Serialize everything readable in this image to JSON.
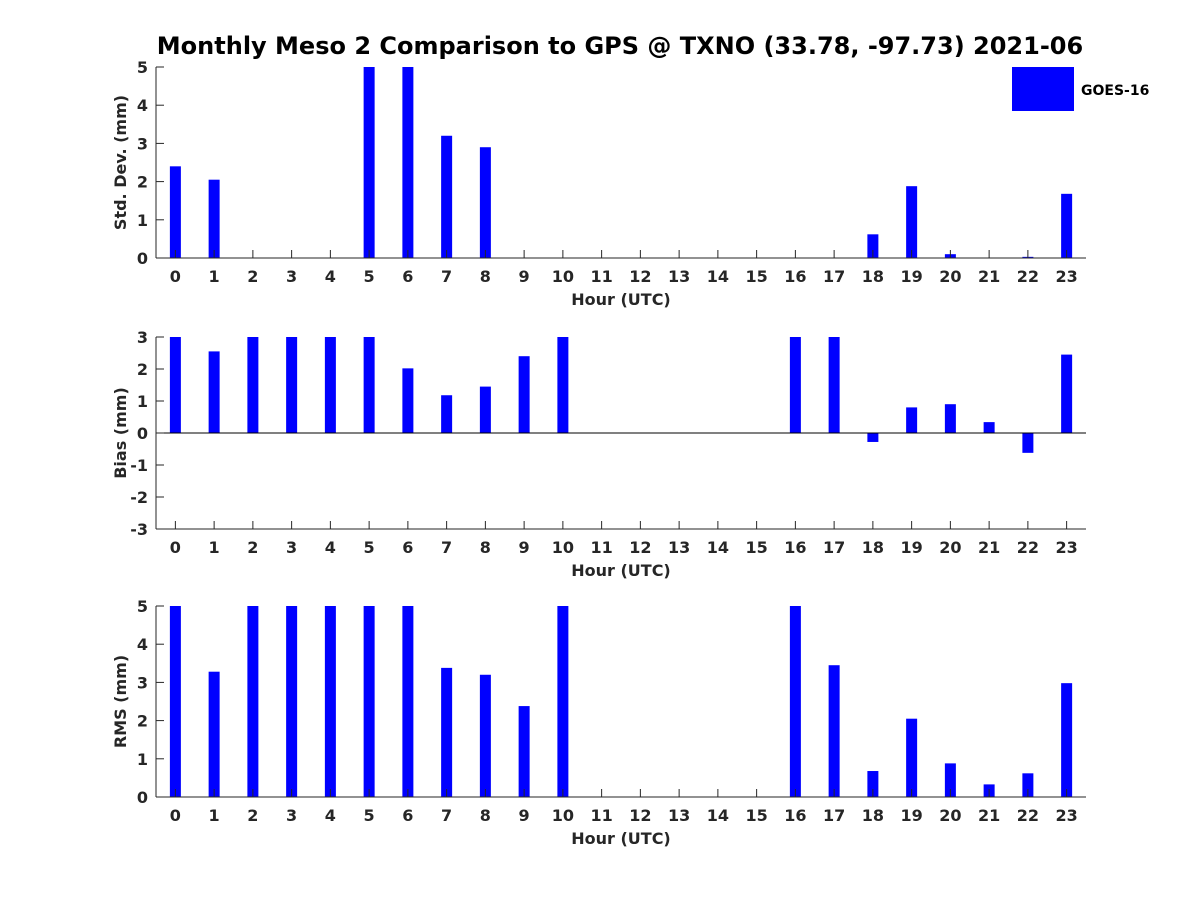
{
  "title": "Monthly Meso 2 Comparison to GPS @ TXNO (33.78, -97.73) 2021-06",
  "legend": {
    "label": "GOES-16",
    "placement": "top-right"
  },
  "colors": {
    "bar": "#0000ff",
    "axis": "#262626",
    "zero_line": "#000000"
  },
  "chart_data": [
    {
      "type": "bar",
      "ylabel": "Std. Dev. (mm)",
      "xlabel": "Hour (UTC)",
      "ylim": [
        0,
        5
      ],
      "yticks": [
        0,
        1,
        2,
        3,
        4,
        5
      ],
      "categories": [
        "0",
        "1",
        "2",
        "3",
        "4",
        "5",
        "6",
        "7",
        "8",
        "9",
        "10",
        "11",
        "12",
        "13",
        "14",
        "15",
        "16",
        "17",
        "18",
        "19",
        "20",
        "21",
        "22",
        "23"
      ],
      "series": [
        {
          "name": "GOES-16",
          "values": [
            2.4,
            2.05,
            null,
            null,
            null,
            5.0,
            5.0,
            3.2,
            2.9,
            null,
            null,
            null,
            null,
            null,
            null,
            null,
            null,
            null,
            0.62,
            1.88,
            0.1,
            null,
            0.03,
            1.68
          ]
        }
      ],
      "grid": false
    },
    {
      "type": "bar",
      "ylabel": "Bias (mm)",
      "xlabel": "Hour (UTC)",
      "ylim": [
        -3,
        3
      ],
      "yticks": [
        -3,
        -2,
        -1,
        0,
        1,
        2,
        3
      ],
      "categories": [
        "0",
        "1",
        "2",
        "3",
        "4",
        "5",
        "6",
        "7",
        "8",
        "9",
        "10",
        "11",
        "12",
        "13",
        "14",
        "15",
        "16",
        "17",
        "18",
        "19",
        "20",
        "21",
        "22",
        "23"
      ],
      "series": [
        {
          "name": "GOES-16",
          "values": [
            3.0,
            2.55,
            3.0,
            3.0,
            3.0,
            3.0,
            2.02,
            1.18,
            1.45,
            2.4,
            3.0,
            null,
            null,
            null,
            null,
            null,
            3.0,
            3.0,
            -0.28,
            0.8,
            0.9,
            0.34,
            -0.62,
            2.45
          ]
        }
      ],
      "zero_line": true,
      "grid": false
    },
    {
      "type": "bar",
      "ylabel": "RMS (mm)",
      "xlabel": "Hour (UTC)",
      "ylim": [
        0,
        5
      ],
      "yticks": [
        0,
        1,
        2,
        3,
        4,
        5
      ],
      "categories": [
        "0",
        "1",
        "2",
        "3",
        "4",
        "5",
        "6",
        "7",
        "8",
        "9",
        "10",
        "11",
        "12",
        "13",
        "14",
        "15",
        "16",
        "17",
        "18",
        "19",
        "20",
        "21",
        "22",
        "23"
      ],
      "series": [
        {
          "name": "GOES-16",
          "values": [
            5.0,
            3.28,
            5.0,
            5.0,
            5.0,
            5.0,
            5.0,
            3.38,
            3.2,
            2.38,
            5.0,
            null,
            null,
            null,
            null,
            null,
            5.0,
            3.45,
            0.68,
            2.05,
            0.88,
            0.33,
            0.62,
            2.98
          ]
        }
      ],
      "grid": false
    }
  ]
}
